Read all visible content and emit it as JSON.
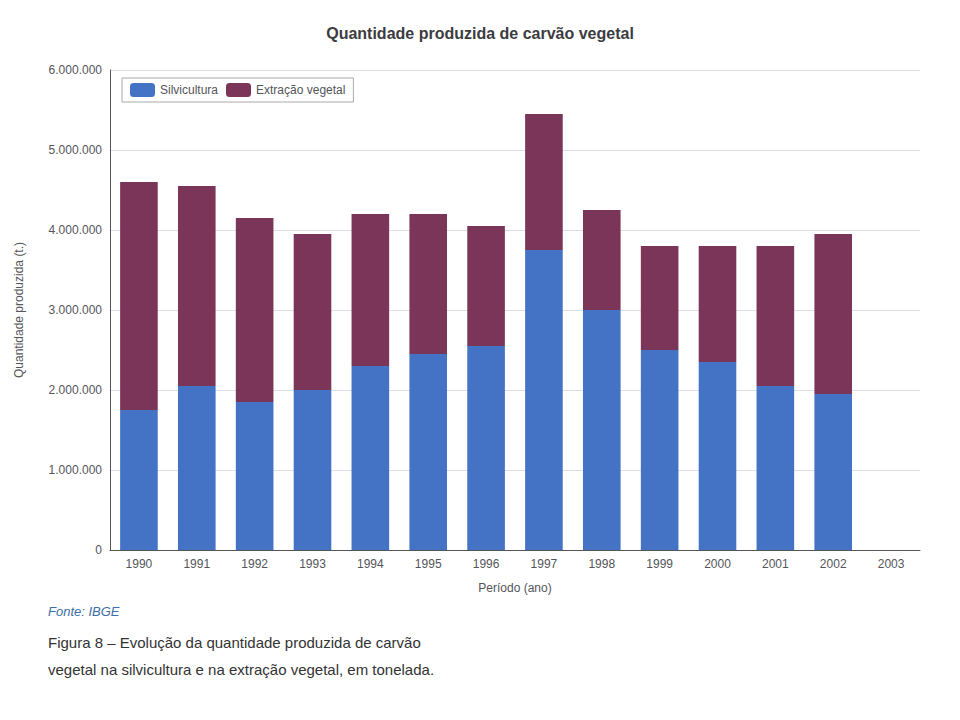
{
  "chart_data": {
    "type": "bar",
    "title": "Quantidade produzida de carvão vegetal",
    "x_label": "Período (ano)",
    "y_label": "Quantidade produzida (t.)",
    "categories": [
      "1990",
      "1991",
      "1992",
      "1993",
      "1994",
      "1995",
      "1996",
      "1997",
      "1998",
      "1999",
      "2000",
      "2001",
      "2002",
      "2003"
    ],
    "series": [
      {
        "name": "Silvicultura",
        "color": "#4472C4",
        "values": [
          1750000,
          2050000,
          1850000,
          2000000,
          2300000,
          2450000,
          2550000,
          3750000,
          3000000,
          2500000,
          2350000,
          2050000,
          1950000,
          0
        ]
      },
      {
        "name": "Extração vegetal",
        "color": "#7B3558",
        "values": [
          2850000,
          2500000,
          2300000,
          1950000,
          1900000,
          1750000,
          1500000,
          1700000,
          1250000,
          1300000,
          1450000,
          1750000,
          2000000,
          0
        ]
      }
    ],
    "stacked": true,
    "ylim": [
      0,
      6000000
    ],
    "yticks": [
      0,
      {
        "value": 1000000,
        "label": "1.000.000"
      },
      {
        "value": 2000000,
        "label": "2.000.000"
      },
      {
        "value": 3000000,
        "label": "3.000.000"
      },
      {
        "value": 4000000,
        "label": "4.000.000"
      },
      {
        "value": 5000000,
        "label": "5.000.000"
      },
      {
        "value": 6000000,
        "label": "6.000.000"
      }
    ],
    "grid": true,
    "legend": "upper left",
    "annotations": [
      "Fonte: IBGE",
      "Figura 8 – Evolução da quantidade produzida de carvão",
      "vegetal na silvicultura e na extração vegetal, em tonelada."
    ]
  }
}
